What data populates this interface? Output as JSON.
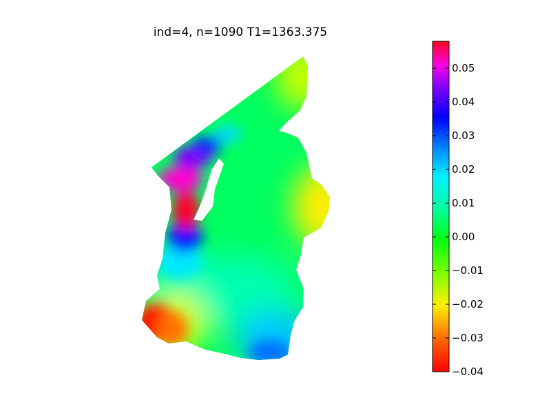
{
  "chart_data": {
    "type": "heatmap",
    "title": "ind=4, n=1090  T1=1363.375",
    "xlabel": "",
    "ylabel": "",
    "axes_visible": false,
    "colormap": "gist_rainbow (red → magenta at high end)",
    "colorbar": {
      "location": "right",
      "vmin": -0.04,
      "vmax": 0.058,
      "ticks": [
        -0.04,
        -0.03,
        -0.02,
        -0.01,
        0.0,
        0.01,
        0.02,
        0.03,
        0.04,
        0.05
      ],
      "tick_labels": [
        "−0.04",
        "−0.03",
        "−0.02",
        "−0.01",
        "0.00",
        "0.01",
        "0.02",
        "0.03",
        "0.04",
        "0.05"
      ]
    },
    "field_features": [
      {
        "region": "upper-left strip near hole",
        "value": 0.058
      },
      {
        "region": "top-left corner",
        "value": 0.045
      },
      {
        "region": "bottom-left corner",
        "value": -0.04
      },
      {
        "region": "right side bulge",
        "value": -0.025
      },
      {
        "region": "bottom center",
        "value": 0.02
      },
      {
        "region": "central body",
        "value": -0.005
      }
    ]
  }
}
